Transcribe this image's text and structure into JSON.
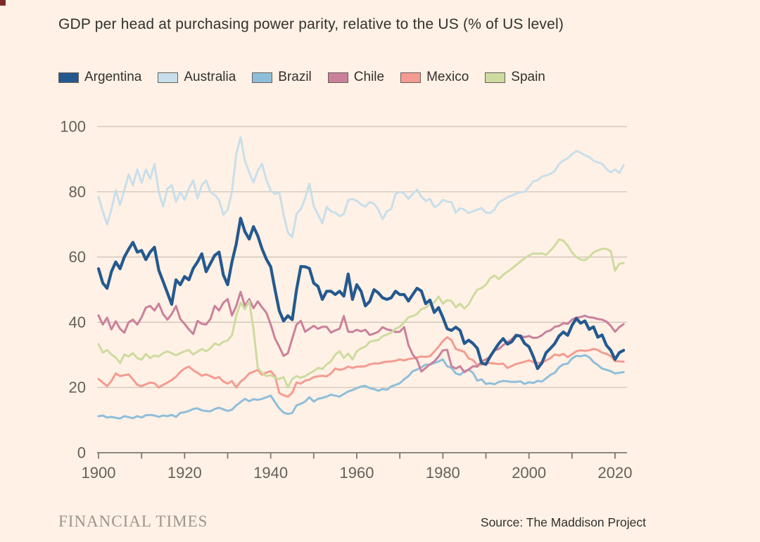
{
  "title": "GDP per head at purchasing power parity, relative to the US (% of US level)",
  "footer": {
    "brand": "FINANCIAL TIMES",
    "source": "Source: The Maddison Project"
  },
  "colors": {
    "background": "#FFF1E5",
    "grid": "#CCC0B3",
    "axis": "#80786D",
    "tick_label": "#66605B",
    "text": "#33302E",
    "ft_brand": "#9D9488",
    "corner_artifact": "#7E2B26"
  },
  "chart_data": {
    "type": "line",
    "title": "GDP per head at purchasing power parity, relative to the US (% of US level)",
    "xlabel": "",
    "ylabel": "% of US level",
    "grid": "horizontal",
    "legend_position": "top",
    "x_axis": {
      "range": [
        1900,
        2022
      ],
      "minor_ticks": [
        1900,
        1910,
        1920,
        1930,
        1940,
        1950,
        1960,
        1970,
        1980,
        1990,
        2000,
        2010,
        2020
      ],
      "labeled_ticks": [
        "1900",
        "1920",
        "1940",
        "1960",
        "1980",
        "2000",
        "2020"
      ]
    },
    "y_axis": {
      "range": [
        0,
        100
      ],
      "ticks": [
        "0",
        "20",
        "40",
        "60",
        "80",
        "100"
      ]
    },
    "x_start_year": 1900,
    "x_step": 1,
    "series": [
      {
        "name": "Argentina",
        "color": "#24598F",
        "stroke_width": 4.2,
        "values": [
          56.4,
          52,
          50.4,
          55.5,
          58.5,
          56.4,
          60,
          62.4,
          64.5,
          61.5,
          62,
          59.2,
          61.5,
          63,
          56,
          52.5,
          49,
          45.5,
          53,
          51.5,
          54,
          53,
          56.5,
          58.5,
          61,
          55.5,
          58,
          60.5,
          61.5,
          54.5,
          51.5,
          58.5,
          64,
          71.9,
          67.8,
          65.5,
          69.3,
          66.5,
          62.5,
          59.3,
          57,
          50,
          43.5,
          40.4,
          42,
          40.8,
          50,
          57.1,
          57,
          56.5,
          52,
          51,
          47,
          49.5,
          49.5,
          48.5,
          49.5,
          48,
          54.8,
          47,
          51.5,
          49.5,
          45,
          46.4,
          50,
          49,
          47.5,
          47,
          47.5,
          49.5,
          48.5,
          48.5,
          46.5,
          48.5,
          50.4,
          49.6,
          45.7,
          46.8,
          43,
          44.5,
          41.5,
          38,
          37.5,
          38.5,
          37.5,
          33.5,
          34.5,
          33.5,
          32,
          27.5,
          27.1,
          29.5,
          31.5,
          33.5,
          35,
          33.3,
          34,
          35.9,
          35.8,
          33.5,
          32.5,
          29.5,
          25.8,
          27.5,
          30.7,
          32,
          33.5,
          35.8,
          37,
          36,
          39,
          41.2,
          39.7,
          40.4,
          37.8,
          38.6,
          35.4,
          36.1,
          32.9,
          31.4,
          28.6,
          30.7,
          31.4
        ]
      },
      {
        "name": "Australia",
        "color": "#C8DFEB",
        "stroke_width": 3,
        "values": [
          78.5,
          74,
          70,
          74.5,
          80.5,
          76,
          80.5,
          85.3,
          82,
          86.8,
          82.8,
          86.8,
          84,
          88.5,
          80,
          75.5,
          81,
          82,
          77,
          80,
          77.5,
          81,
          83.5,
          78,
          82,
          83.5,
          80,
          79,
          77.5,
          73,
          74.5,
          80,
          91.5,
          96.7,
          89.5,
          86,
          82.8,
          86.5,
          88.6,
          83.6,
          80.4,
          79.3,
          79.8,
          73,
          67.5,
          66.1,
          73.2,
          74.7,
          78,
          82.5,
          75.7,
          73,
          70.3,
          75.3,
          74,
          73.6,
          72.5,
          73.2,
          77.5,
          77.8,
          77.2,
          76.1,
          75.5,
          76.8,
          76.4,
          74.5,
          71.6,
          74,
          74.7,
          79.3,
          80,
          79.5,
          77.8,
          79.3,
          80.7,
          78.5,
          77.2,
          77.8,
          75.3,
          76,
          77.5,
          77,
          76.8,
          73.6,
          75,
          74.5,
          73.5,
          74,
          74.5,
          75,
          73.6,
          73.5,
          74.5,
          76.8,
          77.5,
          78.3,
          78.8,
          79.4,
          79.8,
          80,
          81.5,
          83.2,
          83.5,
          84.7,
          85,
          85.5,
          86.4,
          88.5,
          89.6,
          90.3,
          91.5,
          92.5,
          92,
          91.2,
          90.7,
          89.5,
          89,
          88.6,
          87,
          86,
          86.8,
          85.8,
          88.2
        ]
      },
      {
        "name": "Brazil",
        "color": "#8FBEDB",
        "stroke_width": 3,
        "values": [
          11.2,
          11.4,
          10.8,
          11,
          10.7,
          10.5,
          11.2,
          10.9,
          10.6,
          11.2,
          10.8,
          11.5,
          11.6,
          11.4,
          11,
          11.4,
          11.2,
          11.6,
          11,
          12.2,
          12.4,
          12.8,
          13.4,
          13.6,
          13,
          12.8,
          12.7,
          13.4,
          13.8,
          13.3,
          12.8,
          13.2,
          14.5,
          15.5,
          16.5,
          15.8,
          16.4,
          16.2,
          16.5,
          17,
          17.5,
          15.5,
          13.6,
          12.3,
          11.9,
          12.2,
          14.5,
          15,
          15.7,
          17,
          15.7,
          16.5,
          16.8,
          17.2,
          17.8,
          17.5,
          17.2,
          18,
          18.8,
          19.2,
          19.8,
          20.3,
          20.5,
          19.8,
          19.5,
          19,
          19.5,
          19.3,
          20.3,
          20.8,
          21.3,
          22.5,
          23.5,
          25,
          25.5,
          26.2,
          27,
          27,
          27.5,
          28,
          28.6,
          26.5,
          26,
          24.3,
          23.9,
          25,
          25.5,
          24.5,
          22.1,
          22.5,
          21.1,
          21.3,
          21,
          21.7,
          22,
          21.9,
          21.7,
          21.7,
          21.9,
          21.1,
          21.6,
          21.4,
          22,
          21.8,
          22.8,
          23.9,
          24.5,
          26.2,
          27.1,
          27.3,
          28.9,
          29.7,
          29.6,
          29.9,
          29.3,
          27.8,
          26.9,
          25.8,
          25.4,
          25,
          24.3,
          24.5,
          24.7
        ]
      },
      {
        "name": "Chile",
        "color": "#CA809B",
        "stroke_width": 3,
        "values": [
          42.1,
          39.3,
          41.4,
          37.8,
          40.3,
          38,
          36.8,
          40,
          40.8,
          39.3,
          41.5,
          44.5,
          45,
          43.6,
          45.7,
          42.5,
          40.8,
          42.5,
          45,
          41,
          39.5,
          37.8,
          36.4,
          40.4,
          39.5,
          39.3,
          41,
          45,
          43.6,
          46,
          47.1,
          42.1,
          45,
          49.3,
          45,
          47.1,
          44.3,
          46.4,
          44.6,
          42.9,
          39.3,
          35,
          32.5,
          29.7,
          30.5,
          35,
          39.3,
          40.4,
          37.1,
          38,
          38.9,
          38,
          38.6,
          38.6,
          36.8,
          37.5,
          38,
          41.9,
          37.1,
          37,
          37.7,
          37.2,
          37.7,
          36.1,
          36.5,
          37.1,
          38.5,
          37.8,
          37.5,
          37,
          37.1,
          38.5,
          33,
          30.1,
          28.5,
          24.9,
          26,
          27.1,
          28,
          29.5,
          31.4,
          31.5,
          26.5,
          25.8,
          26.5,
          24.7,
          25.5,
          26.5,
          26.4,
          28,
          28.6,
          29.5,
          31.4,
          31.8,
          33,
          33.9,
          34.8,
          36.2,
          35.9,
          35.4,
          35.8,
          35.2,
          35.3,
          36,
          37.1,
          37.5,
          38.6,
          38.9,
          39.7,
          39.5,
          40.8,
          41.4,
          41.6,
          42,
          41.5,
          41.4,
          41,
          40.8,
          40.2,
          38.9,
          37.1,
          38.5,
          39.4
        ]
      },
      {
        "name": "Mexico",
        "color": "#F59B91",
        "stroke_width": 3,
        "values": [
          22.6,
          21.5,
          20.4,
          22,
          24.3,
          23.5,
          23.8,
          24,
          22.5,
          20.8,
          20.4,
          21,
          21.5,
          21.3,
          20,
          20.8,
          21.5,
          22.3,
          23.3,
          24.8,
          25.8,
          26.4,
          25.3,
          24.5,
          23.6,
          24,
          23.5,
          22.8,
          23.2,
          21.8,
          21.2,
          22,
          20,
          21.8,
          22.8,
          24.3,
          24.8,
          25.4,
          23.9,
          24.6,
          25,
          23.5,
          18.3,
          17.6,
          17.2,
          18.4,
          21.5,
          21.2,
          22.1,
          22.4,
          23.2,
          23.4,
          23.6,
          23.4,
          24.3,
          25.8,
          25.4,
          25.7,
          26.4,
          26,
          26.4,
          26.4,
          26.5,
          27.1,
          27.4,
          27.3,
          27.7,
          27.9,
          28,
          28.2,
          28.6,
          28.3,
          28.7,
          28.9,
          29.2,
          29.5,
          29.4,
          29.6,
          31,
          32.5,
          34.2,
          35.4,
          34.5,
          31.8,
          31.4,
          30.9,
          28.9,
          28.4,
          26.8,
          27,
          27.3,
          27.5,
          27.3,
          27.2,
          27.3,
          26,
          26.6,
          27.2,
          27.5,
          27.9,
          28.3,
          27.8,
          27.5,
          27.6,
          28.3,
          29,
          30.1,
          29.8,
          30.3,
          29.3,
          30.2,
          31.1,
          31.4,
          31.2,
          31.4,
          31.8,
          31.5,
          30.7,
          30.3,
          29.6,
          28.1,
          28,
          27.9
        ]
      },
      {
        "name": "Spain",
        "color": "#CEDB9F",
        "stroke_width": 3,
        "values": [
          33.3,
          30.7,
          31.5,
          30.1,
          29.2,
          27.5,
          30.1,
          29.5,
          30.5,
          29,
          28.5,
          30.3,
          29,
          29.8,
          29.5,
          30.5,
          31.1,
          30.5,
          29.9,
          30.5,
          31.1,
          31.5,
          30.1,
          31,
          31.8,
          31.1,
          32,
          33.5,
          33,
          34,
          34.4,
          36,
          42,
          46,
          44,
          46.5,
          38,
          26,
          24.5,
          23.5,
          23.8,
          23,
          22.6,
          23.2,
          20,
          22.6,
          23.5,
          23,
          23.5,
          24.3,
          25,
          26,
          25.7,
          27.1,
          28,
          30.1,
          31.1,
          29,
          30.4,
          28.6,
          31.1,
          32,
          32.5,
          34,
          34.3,
          34.6,
          35.7,
          36.2,
          36.8,
          38,
          38.6,
          40,
          41.5,
          41.9,
          42.5,
          44,
          44.5,
          45.5,
          46.1,
          47.9,
          45.7,
          46.8,
          46.5,
          44.6,
          45.7,
          44.2,
          45.5,
          47.9,
          50,
          50.5,
          51.5,
          53.5,
          54.3,
          53.2,
          54.5,
          55.5,
          56.4,
          57.5,
          58.6,
          59.6,
          60.5,
          61.1,
          61,
          61.1,
          60.7,
          62,
          63.5,
          65.4,
          65,
          63.5,
          61.4,
          60,
          59.2,
          59,
          60,
          61.4,
          62,
          62.5,
          62.5,
          61.8,
          55.8,
          57.9,
          58.2
        ]
      }
    ]
  }
}
